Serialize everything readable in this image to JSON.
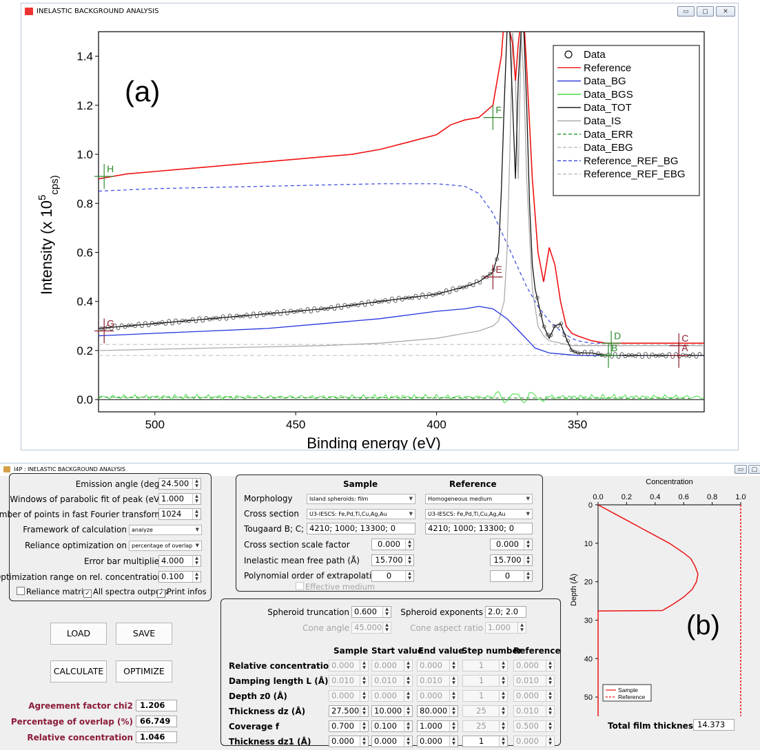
{
  "window1": {
    "title": "INELASTIC BACKGROUND ANALYSIS",
    "panel_label": "(a)",
    "chart_data": {
      "type": "line",
      "xlabel": "Binding energy (eV)",
      "ylabel": "Intensity (x 10",
      "ylabel_exp": "5",
      "ylabel_unit": "cps)",
      "xlim": [
        520,
        305
      ],
      "ylim": [
        -0.05,
        1.5
      ],
      "x_reversed": true,
      "xticks": [
        500,
        450,
        400,
        350
      ],
      "yticks": [
        0.0,
        0.2,
        0.4,
        0.6,
        0.8,
        1.0,
        1.2,
        1.4
      ],
      "legend_position": "top-right",
      "legend": [
        {
          "name": "Data",
          "style": "circle",
          "color": "#000000"
        },
        {
          "name": "Reference",
          "style": "solid",
          "color": "#ee1111"
        },
        {
          "name": "Data_BG",
          "style": "solid",
          "color": "#2233dd"
        },
        {
          "name": "Data_BGS",
          "style": "solid",
          "color": "#33dd33"
        },
        {
          "name": "Data_TOT",
          "style": "solid",
          "color": "#111111"
        },
        {
          "name": "Data_IS",
          "style": "solid",
          "color": "#aaaaaa"
        },
        {
          "name": "Data_ERR",
          "style": "dashed",
          "color": "#229922"
        },
        {
          "name": "Data_EBG",
          "style": "dashed",
          "color": "#bbbbbb"
        },
        {
          "name": "Reference_REF_BG",
          "style": "dashed",
          "color": "#3344dd"
        },
        {
          "name": "Reference_REF_EBG",
          "style": "dashed",
          "color": "#bbbbbb"
        }
      ],
      "series": {
        "reference": {
          "x": [
            520,
            510,
            500,
            490,
            480,
            470,
            460,
            450,
            440,
            430,
            420,
            410,
            400,
            395,
            390,
            385,
            380,
            377,
            376,
            375,
            373,
            372,
            371,
            370,
            369,
            368,
            366,
            364,
            362,
            360,
            358,
            356,
            354,
            352,
            350,
            345,
            340,
            330,
            320,
            310,
            305
          ],
          "y": [
            0.9,
            0.92,
            0.93,
            0.94,
            0.95,
            0.96,
            0.97,
            0.98,
            0.99,
            1.0,
            1.02,
            1.05,
            1.08,
            1.12,
            1.14,
            1.15,
            1.2,
            1.4,
            1.55,
            1.55,
            1.45,
            1.3,
            1.45,
            1.55,
            1.55,
            1.35,
            0.9,
            0.6,
            0.48,
            0.62,
            0.55,
            0.4,
            0.3,
            0.27,
            0.26,
            0.24,
            0.23,
            0.23,
            0.23,
            0.23,
            0.23
          ]
        },
        "data_bg": {
          "x": [
            520,
            500,
            480,
            460,
            440,
            420,
            400,
            390,
            385,
            380,
            375,
            370,
            365,
            360,
            355,
            350,
            340,
            330,
            320,
            305
          ],
          "y": [
            0.26,
            0.27,
            0.28,
            0.29,
            0.31,
            0.33,
            0.36,
            0.37,
            0.38,
            0.37,
            0.33,
            0.27,
            0.21,
            0.19,
            0.185,
            0.18,
            0.18,
            0.18,
            0.18,
            0.18
          ]
        },
        "data_tot": {
          "x": [
            520,
            500,
            480,
            460,
            440,
            420,
            400,
            390,
            385,
            380,
            378,
            377,
            376,
            375,
            374,
            373,
            372,
            371,
            370,
            369,
            368,
            367,
            366,
            365,
            364,
            362,
            360,
            358,
            356,
            354,
            352,
            350,
            345,
            340,
            330,
            320,
            310,
            305
          ],
          "y": [
            0.29,
            0.31,
            0.33,
            0.35,
            0.37,
            0.4,
            0.43,
            0.46,
            0.48,
            0.52,
            0.6,
            0.85,
            1.2,
            1.5,
            1.5,
            1.2,
            0.9,
            1.3,
            1.5,
            1.5,
            1.2,
            0.8,
            0.55,
            0.45,
            0.4,
            0.3,
            0.25,
            0.3,
            0.31,
            0.25,
            0.2,
            0.19,
            0.19,
            0.18,
            0.18,
            0.18,
            0.18,
            0.18
          ]
        },
        "data_is": {
          "x": [
            520,
            480,
            440,
            420,
            400,
            390,
            385,
            380,
            378,
            376,
            375,
            374,
            373,
            372,
            371,
            370,
            369,
            368,
            366,
            364,
            362,
            360,
            356,
            352,
            348,
            340,
            330,
            305
          ],
          "y": [
            0.2,
            0.21,
            0.22,
            0.23,
            0.25,
            0.27,
            0.28,
            0.3,
            0.32,
            0.4,
            0.6,
            1.0,
            1.5,
            1.3,
            0.9,
            1.5,
            1.3,
            0.9,
            0.45,
            0.3,
            0.26,
            0.24,
            0.23,
            0.22,
            0.22,
            0.22,
            0.22,
            0.22
          ]
        },
        "ref_bg": {
          "x": [
            520,
            500,
            480,
            460,
            440,
            420,
            400,
            390,
            385,
            380,
            376,
            372,
            368,
            364,
            360,
            356,
            352,
            350,
            345,
            340,
            330,
            320,
            305
          ],
          "y": [
            0.85,
            0.86,
            0.865,
            0.87,
            0.875,
            0.88,
            0.88,
            0.87,
            0.84,
            0.76,
            0.66,
            0.56,
            0.46,
            0.38,
            0.32,
            0.28,
            0.25,
            0.24,
            0.23,
            0.23,
            0.23,
            0.23,
            0.23
          ]
        },
        "ebg_levels": [
          0.225,
          0.18
        ],
        "bgs_level": 0.0
      },
      "markers": [
        {
          "label": "H",
          "x": 518,
          "y": 0.91,
          "color": "#2a8a2a"
        },
        {
          "label": "F",
          "x": 380,
          "y": 1.15,
          "color": "#2a8a2a"
        },
        {
          "label": "E",
          "x": 380,
          "y": 0.5,
          "color": "#8b1c2a"
        },
        {
          "label": "G",
          "x": 518,
          "y": 0.28,
          "color": "#8b1c2a"
        },
        {
          "label": "D",
          "x": 338,
          "y": 0.23,
          "color": "#2a8a2a"
        },
        {
          "label": "B",
          "x": 339,
          "y": 0.18,
          "color": "#2a8a2a"
        },
        {
          "label": "C",
          "x": 314,
          "y": 0.22,
          "color": "#8b1c2a"
        },
        {
          "label": "A",
          "x": 314,
          "y": 0.18,
          "color": "#8b1c2a"
        }
      ]
    }
  },
  "window2": {
    "title": "I4P : INELASTIC BACKGROUND ANALYSIS",
    "params": [
      {
        "label": "Emission angle (deg)",
        "value": "24.500"
      },
      {
        "label": "Windows of parabolic fit of peak (eV)",
        "value": "1.000"
      },
      {
        "label": "Number of points in fast Fourier transform",
        "value": "1024"
      }
    ],
    "framework": {
      "label": "Framework of calculation",
      "value": "analyze"
    },
    "reliance": {
      "label": "Reliance optimization on",
      "value": "percentage of overlap"
    },
    "errorbar": {
      "label": "Error bar multiplier",
      "value": "4.000"
    },
    "optrange": {
      "label": "Optimization range on rel. concentration",
      "value": "0.100"
    },
    "checks": {
      "reliance_matrix": "Reliance matrix",
      "all_spectra": "All spectra outputs",
      "print_infos": "Print infos"
    },
    "buttons": {
      "load": "LOAD",
      "save": "SAVE",
      "calculate": "CALCULATE",
      "optimize": "OPTIMIZE"
    },
    "results": [
      {
        "label": "Agreement factor chi2",
        "value": "1.206"
      },
      {
        "label": "Percentage of overlap (%)",
        "value": "66.749"
      },
      {
        "label": "Relative concentration",
        "value": "1.046"
      }
    ],
    "morph_panel": {
      "col_sample": "Sample",
      "col_reference": "Reference",
      "morphology": {
        "label": "Morphology",
        "sample": "Island spheroids: film",
        "reference": "Homogeneous medium"
      },
      "cross_section": {
        "label": "Cross section",
        "sample": "U3-IESCS: Fe,Pd,Ti,Cu,Ag,Au",
        "reference": "U3-IESCS: Fe,Pd,Ti,Cu,Ag,Au"
      },
      "tougaard": {
        "label": "Tougaard B; C; D; G",
        "sample": "4210;  1000;  13300;  0",
        "reference": "4210;  1000;  13300;  0"
      },
      "scale": {
        "label": "Cross section scale factor",
        "sample": "0.000",
        "reference": "0.000"
      },
      "imfp": {
        "label": "Inelastic mean free path (Å)",
        "sample": "15.700",
        "reference": "15.700"
      },
      "poly": {
        "label": "Polynomial order of extrapolation",
        "sample": "0",
        "reference": "0"
      },
      "effective": "Effective medium"
    },
    "geom_panel": {
      "spheroid_truncation": {
        "label": "Spheroid truncation",
        "value": "0.600"
      },
      "spheroid_exponents": {
        "label": "Spheroid exponents",
        "value": "2.0; 2.0"
      },
      "cone_angle": {
        "label": "Cone angle",
        "value": "45.000"
      },
      "cone_aspect": {
        "label": "Cone aspect ratio",
        "value": "1.000"
      },
      "headers": [
        "Sample",
        "Start value",
        "End value",
        "Step number",
        "Reference"
      ],
      "rows": [
        {
          "label": "Relative concentration dC",
          "values": [
            "0.000",
            "0.000",
            "0.000",
            "1",
            "0.000"
          ]
        },
        {
          "label": "Damping length L (Å)",
          "values": [
            "0.010",
            "0.010",
            "0.010",
            "1",
            "0.010"
          ]
        },
        {
          "label": "Depth z0 (Å)",
          "values": [
            "0.000",
            "0.000",
            "0.000",
            "1",
            "0.000"
          ]
        },
        {
          "label": "Thickness dz (Å)",
          "values": [
            "27.500",
            "10.000",
            "80.000",
            "25",
            "0.010"
          ]
        },
        {
          "label": "Coverage f",
          "values": [
            "0.700",
            "0.100",
            "1.000",
            "25",
            "0.500"
          ]
        },
        {
          "label": "Thickness dz1 (Å)",
          "values": [
            "0.000",
            "0.000",
            "0.000",
            "1",
            "0.000"
          ]
        }
      ]
    },
    "profile": {
      "panel_label": "(b)",
      "chart_data": {
        "type": "line",
        "title": "Concentration",
        "ylabel": "Depth (Å)",
        "xlim": [
          0,
          1.0
        ],
        "ylim": [
          0,
          55
        ],
        "y_reversed": true,
        "xticks": [
          "0.0",
          "0.2",
          "0.4",
          "0.6",
          "0.8",
          "1.0"
        ],
        "yticks": [
          "0",
          "10",
          "20",
          "30",
          "40",
          "50"
        ],
        "legend_position": "bottom-left",
        "series": [
          {
            "name": "Sample",
            "style": "solid",
            "color": "#ee1111",
            "x": [
              0,
              0.1,
              0.2,
              0.3,
              0.4,
              0.5,
              0.6,
              0.65,
              0.68,
              0.7,
              0.69,
              0.66,
              0.6,
              0.52,
              0.45,
              0.0,
              0.0
            ],
            "y": [
              0,
              2,
              4,
              6,
              8,
              10,
              12.5,
              14,
              16,
              18,
              20,
              22,
              24,
              26,
              27.5,
              27.6,
              55
            ]
          },
          {
            "name": "Reference",
            "style": "dashed",
            "color": "#ee1111",
            "x": [
              1.0,
              1.0
            ],
            "y": [
              0,
              55
            ]
          }
        ]
      },
      "total_label": "Total film thickness (Å)",
      "total_value": "14.373"
    }
  }
}
